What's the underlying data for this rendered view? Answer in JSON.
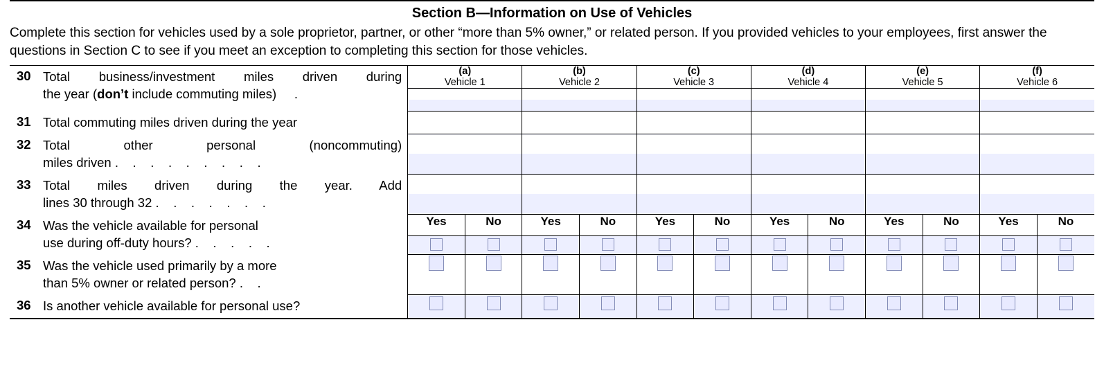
{
  "section": {
    "title": "Section B—Information on Use of Vehicles",
    "instructions": "Complete this section for vehicles used by a sole proprietor, partner, or other “more than 5% owner,” or related person. If you provided vehicles to your employees, first answer the questions in Section C to see if you meet an exception to completing this section for those vehicles."
  },
  "vehicles": [
    {
      "letter": "(a)",
      "label": "Vehicle 1"
    },
    {
      "letter": "(b)",
      "label": "Vehicle 2"
    },
    {
      "letter": "(c)",
      "label": "Vehicle 3"
    },
    {
      "letter": "(d)",
      "label": "Vehicle 4"
    },
    {
      "letter": "(e)",
      "label": "Vehicle 5"
    },
    {
      "letter": "(f)",
      "label": "Vehicle 6"
    }
  ],
  "rows": {
    "r30": {
      "num": "30",
      "text_a": "Total business/investment miles driven during",
      "text_b": "the year (",
      "bold": "don’t",
      "text_c": " include commuting miles)"
    },
    "r31": {
      "num": "31",
      "text": "Total commuting miles driven during the year"
    },
    "r32": {
      "num": "32",
      "text_a": "Total other personal (noncommuting)",
      "text_b": "miles driven"
    },
    "r33": {
      "num": "33",
      "text_a": "Total miles driven during the year. Add",
      "text_b": "lines 30 through 32"
    },
    "r34": {
      "num": "34",
      "text_a": "Was the vehicle available for personal",
      "text_b": "use during off-duty hours?"
    },
    "r35": {
      "num": "35",
      "text_a": "Was the vehicle used primarily by a more",
      "text_b": "than 5% owner or related person?"
    },
    "r36": {
      "num": "36",
      "text": "Is another vehicle available for personal use?"
    }
  },
  "yesno": {
    "yes": "Yes",
    "no": "No"
  },
  "colors": {
    "shade": "#edefff",
    "checkbox_border": "#848db8",
    "checkbox_fill": "#e8eaff"
  }
}
